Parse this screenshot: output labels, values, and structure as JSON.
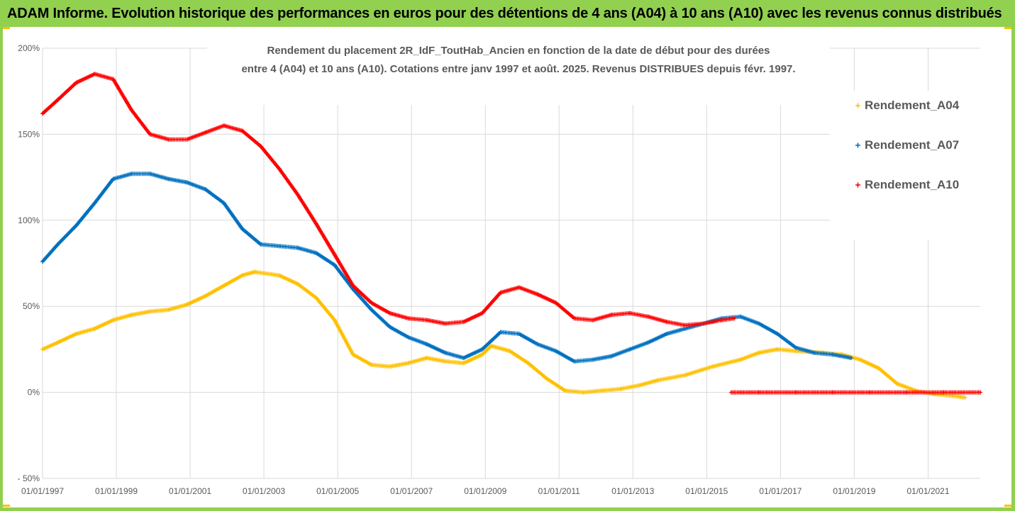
{
  "banner": {
    "title": "ADAM Informe. Evolution historique des performances en euros pour des détentions de 4 ans (A04) à 10 ans (A10) avec les revenus connus distribués"
  },
  "colors": {
    "banner_bg": "#92d050",
    "frame": "#92d050",
    "corner_marks": "#ffc000",
    "A04": "#ffc000",
    "A07": "#0070c0",
    "A10": "#ff0000",
    "gridline": "#d9d9d9",
    "axis_text": "#595959"
  },
  "chart_data": {
    "type": "scatter",
    "title_lines": [
      "Rendement du placement 2R_IdF_ToutHab_Ancien en fonction de la date de début pour des durées",
      "entre 4 (A04) et 10 ans (A10). Cotations entre janv 1997 et août. 2025. Revenus DISTRIBUES depuis févr. 1997."
    ],
    "xlabel": "",
    "ylabel": "",
    "x_ticks": [
      "01/01/1997",
      "01/01/1999",
      "01/01/2001",
      "01/01/2003",
      "01/01/2005",
      "01/01/2007",
      "01/01/2009",
      "01/01/2011",
      "01/01/2013",
      "01/01/2015",
      "01/01/2017",
      "01/01/2019",
      "01/01/2021"
    ],
    "y_ticks": [
      "200%",
      "150%",
      "100%",
      "50%",
      "0%",
      "- 50%"
    ],
    "ylim": [
      -50,
      200
    ],
    "xlim": [
      "1997-01-01",
      "2022-06-01"
    ],
    "grid": "horizontal",
    "legend_position": "right",
    "series": [
      {
        "name": "Rendement_A04",
        "marker": "+",
        "points": [
          [
            "1997-01-01",
            25
          ],
          [
            "1997-06-01",
            29
          ],
          [
            "1997-12-01",
            34
          ],
          [
            "1998-06-01",
            37
          ],
          [
            "1998-12-01",
            42
          ],
          [
            "1999-06-01",
            45
          ],
          [
            "1999-12-01",
            47
          ],
          [
            "2000-06-01",
            48
          ],
          [
            "2000-12-01",
            51
          ],
          [
            "2001-06-01",
            56
          ],
          [
            "2001-12-01",
            62
          ],
          [
            "2002-06-01",
            68
          ],
          [
            "2002-10-01",
            70
          ],
          [
            "2003-06-01",
            68
          ],
          [
            "2003-12-01",
            63
          ],
          [
            "2004-06-01",
            55
          ],
          [
            "2004-12-01",
            42
          ],
          [
            "2005-06-01",
            22
          ],
          [
            "2005-12-01",
            16
          ],
          [
            "2006-06-01",
            15
          ],
          [
            "2006-12-01",
            17
          ],
          [
            "2007-06-01",
            20
          ],
          [
            "2007-12-01",
            18
          ],
          [
            "2008-06-01",
            17
          ],
          [
            "2008-12-01",
            22
          ],
          [
            "2009-03-01",
            27
          ],
          [
            "2009-09-01",
            24
          ],
          [
            "2010-03-01",
            17
          ],
          [
            "2010-09-01",
            8
          ],
          [
            "2011-03-01",
            1
          ],
          [
            "2011-09-01",
            0
          ],
          [
            "2012-03-01",
            1
          ],
          [
            "2012-09-01",
            2
          ],
          [
            "2013-03-01",
            4
          ],
          [
            "2013-09-01",
            7
          ],
          [
            "2014-06-01",
            10
          ],
          [
            "2015-03-01",
            15
          ],
          [
            "2015-12-01",
            19
          ],
          [
            "2016-06-01",
            23
          ],
          [
            "2016-12-01",
            25
          ],
          [
            "2017-06-01",
            24
          ],
          [
            "2018-03-01",
            23
          ],
          [
            "2018-09-01",
            22
          ],
          [
            "2019-03-01",
            19
          ],
          [
            "2019-09-01",
            14
          ],
          [
            "2020-03-01",
            5
          ],
          [
            "2020-09-01",
            1
          ],
          [
            "2021-03-01",
            -1
          ],
          [
            "2021-09-01",
            -2
          ],
          [
            "2022-01-01",
            -3
          ]
        ]
      },
      {
        "name": "Rendement_A07",
        "marker": "+",
        "points": [
          [
            "1997-01-01",
            76
          ],
          [
            "1997-06-01",
            86
          ],
          [
            "1997-12-01",
            97
          ],
          [
            "1998-06-01",
            110
          ],
          [
            "1998-12-01",
            124
          ],
          [
            "1999-06-01",
            127
          ],
          [
            "1999-12-01",
            127
          ],
          [
            "2000-06-01",
            124
          ],
          [
            "2000-12-01",
            122
          ],
          [
            "2001-06-01",
            118
          ],
          [
            "2001-12-01",
            110
          ],
          [
            "2002-06-01",
            95
          ],
          [
            "2002-12-01",
            86
          ],
          [
            "2003-06-01",
            85
          ],
          [
            "2003-12-01",
            84
          ],
          [
            "2004-06-01",
            81
          ],
          [
            "2004-12-01",
            74
          ],
          [
            "2005-06-01",
            60
          ],
          [
            "2005-12-01",
            48
          ],
          [
            "2006-06-01",
            38
          ],
          [
            "2006-12-01",
            32
          ],
          [
            "2007-06-01",
            28
          ],
          [
            "2007-12-01",
            23
          ],
          [
            "2008-06-01",
            20
          ],
          [
            "2008-12-01",
            25
          ],
          [
            "2009-06-01",
            35
          ],
          [
            "2009-12-01",
            34
          ],
          [
            "2010-06-01",
            28
          ],
          [
            "2010-12-01",
            24
          ],
          [
            "2011-06-01",
            18
          ],
          [
            "2011-12-01",
            19
          ],
          [
            "2012-06-01",
            21
          ],
          [
            "2012-12-01",
            25
          ],
          [
            "2013-06-01",
            29
          ],
          [
            "2013-12-01",
            34
          ],
          [
            "2014-06-01",
            37
          ],
          [
            "2014-12-01",
            40
          ],
          [
            "2015-06-01",
            43
          ],
          [
            "2015-12-01",
            44
          ],
          [
            "2016-06-01",
            40
          ],
          [
            "2016-12-01",
            34
          ],
          [
            "2017-06-01",
            26
          ],
          [
            "2017-12-01",
            23
          ],
          [
            "2018-06-01",
            22
          ],
          [
            "2018-12-01",
            20
          ]
        ]
      },
      {
        "name": "Rendement_A10",
        "marker": "+",
        "points": [
          [
            "1997-01-01",
            162
          ],
          [
            "1997-06-01",
            170
          ],
          [
            "1997-12-01",
            180
          ],
          [
            "1998-06-01",
            185
          ],
          [
            "1998-12-01",
            182
          ],
          [
            "1999-06-01",
            164
          ],
          [
            "1999-12-01",
            150
          ],
          [
            "2000-06-01",
            147
          ],
          [
            "2000-12-01",
            147
          ],
          [
            "2001-06-01",
            151
          ],
          [
            "2001-12-01",
            155
          ],
          [
            "2002-06-01",
            152
          ],
          [
            "2002-12-01",
            143
          ],
          [
            "2003-06-01",
            130
          ],
          [
            "2003-12-01",
            115
          ],
          [
            "2004-06-01",
            98
          ],
          [
            "2004-12-01",
            80
          ],
          [
            "2005-06-01",
            62
          ],
          [
            "2005-12-01",
            52
          ],
          [
            "2006-06-01",
            46
          ],
          [
            "2006-12-01",
            43
          ],
          [
            "2007-06-01",
            42
          ],
          [
            "2007-12-01",
            40
          ],
          [
            "2008-06-01",
            41
          ],
          [
            "2008-12-01",
            46
          ],
          [
            "2009-06-01",
            58
          ],
          [
            "2009-12-01",
            61
          ],
          [
            "2010-06-01",
            57
          ],
          [
            "2010-12-01",
            52
          ],
          [
            "2011-06-01",
            43
          ],
          [
            "2011-12-01",
            42
          ],
          [
            "2012-06-01",
            45
          ],
          [
            "2012-12-01",
            46
          ],
          [
            "2013-06-01",
            44
          ],
          [
            "2013-12-01",
            41
          ],
          [
            "2014-06-01",
            39
          ],
          [
            "2014-12-01",
            40
          ],
          [
            "2015-06-01",
            42
          ],
          [
            "2015-10-01",
            43
          ],
          [
            "2015-09-01",
            0
          ],
          [
            "2016-06-01",
            0
          ],
          [
            "2017-06-01",
            0
          ],
          [
            "2018-06-01",
            0
          ],
          [
            "2019-06-01",
            0
          ],
          [
            "2020-06-01",
            0
          ],
          [
            "2021-06-01",
            0
          ],
          [
            "2022-06-01",
            0
          ]
        ]
      }
    ]
  }
}
